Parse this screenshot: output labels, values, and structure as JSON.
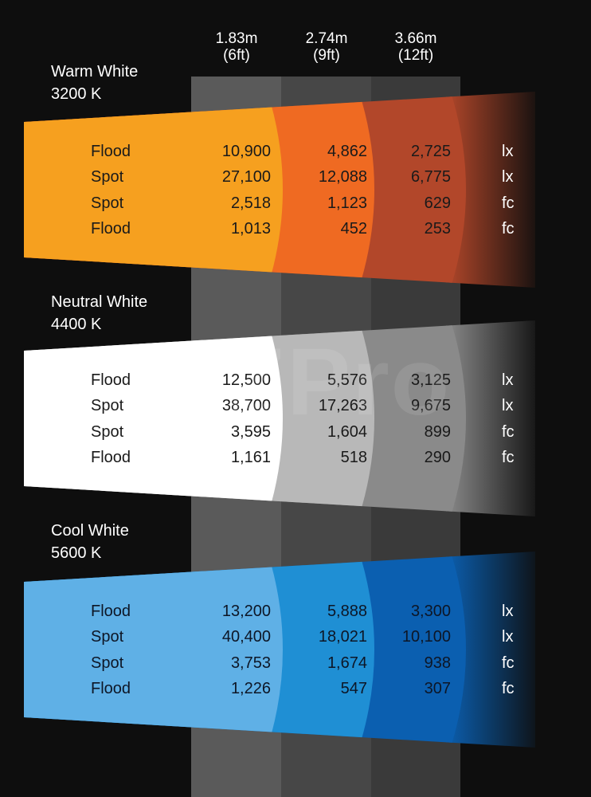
{
  "chart_data": {
    "type": "table",
    "columns": [
      {
        "distance": "1.83m",
        "feet": "(6ft)"
      },
      {
        "distance": "2.74m",
        "feet": "(9ft)"
      },
      {
        "distance": "3.66m",
        "feet": "(12ft)"
      }
    ],
    "groups": [
      {
        "title": "Warm White",
        "temp": "3200 K",
        "colors": [
          "#f6a01f",
          "#ef6a22",
          "#b2472a"
        ],
        "text_color": "#1a1a1a",
        "rows": [
          {
            "label": "Flood",
            "values": [
              "10,900",
              "4,862",
              "2,725"
            ],
            "unit": "lx"
          },
          {
            "label": "Spot",
            "values": [
              "27,100",
              "12,088",
              "6,775"
            ],
            "unit": "lx"
          },
          {
            "label": "Spot",
            "values": [
              "2,518",
              "1,123",
              "629"
            ],
            "unit": "fc"
          },
          {
            "label": "Flood",
            "values": [
              "1,013",
              "452",
              "253"
            ],
            "unit": "fc"
          }
        ]
      },
      {
        "title": "Neutral White",
        "temp": "4400 K",
        "colors": [
          "#ffffff",
          "#b8b8b8",
          "#8a8a8a"
        ],
        "text_color": "#1a1a1a",
        "rows": [
          {
            "label": "Flood",
            "values": [
              "12,500",
              "5,576",
              "3,125"
            ],
            "unit": "lx"
          },
          {
            "label": "Spot",
            "values": [
              "38,700",
              "17,263",
              "9,675"
            ],
            "unit": "lx"
          },
          {
            "label": "Spot",
            "values": [
              "3,595",
              "1,604",
              "899"
            ],
            "unit": "fc"
          },
          {
            "label": "Flood",
            "values": [
              "1,161",
              "518",
              "290"
            ],
            "unit": "fc"
          }
        ]
      },
      {
        "title": "Cool White",
        "temp": "5600 K",
        "colors": [
          "#5fb0e6",
          "#1f8fd4",
          "#0b5fb0"
        ],
        "text_color": "#0d1626",
        "rows": [
          {
            "label": "Flood",
            "values": [
              "13,200",
              "5,888",
              "3,300"
            ],
            "unit": "lx"
          },
          {
            "label": "Spot",
            "values": [
              "40,400",
              "18,021",
              "10,100"
            ],
            "unit": "lx"
          },
          {
            "label": "Spot",
            "values": [
              "3,753",
              "1,674",
              "938"
            ],
            "unit": "fc"
          },
          {
            "label": "Flood",
            "values": [
              "1,226",
              "547",
              "307"
            ],
            "unit": "fc"
          }
        ]
      }
    ],
    "watermark": "AZPro"
  }
}
